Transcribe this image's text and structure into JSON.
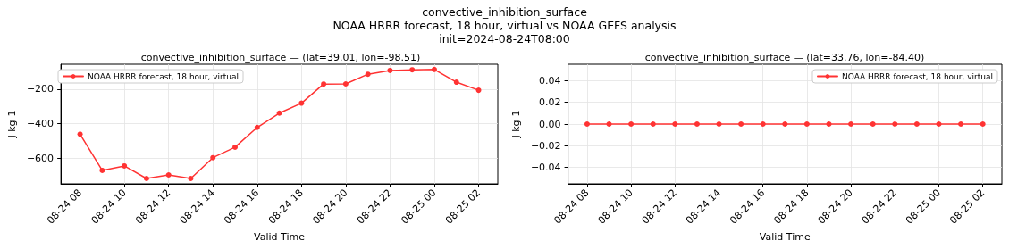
{
  "chart_data": [
    {
      "type": "line",
      "title": "convective_inhibition_surface — (lat=39.01, lon=-98.51)",
      "annotations": [
        "convective_inhibition_surface",
        "NOAA HRRR forecast, 18 hour, virtual vs NOAA GEFS analysis",
        "init=2024-08-24T08:00"
      ],
      "xlabel": "Valid Time",
      "ylabel": "J kg-1",
      "x": [
        "2024-08-24T08:00",
        "2024-08-24T09:00",
        "2024-08-24T10:00",
        "2024-08-24T11:00",
        "2024-08-24T12:00",
        "2024-08-24T13:00",
        "2024-08-24T14:00",
        "2024-08-24T15:00",
        "2024-08-24T16:00",
        "2024-08-24T17:00",
        "2024-08-24T18:00",
        "2024-08-24T19:00",
        "2024-08-24T20:00",
        "2024-08-24T21:00",
        "2024-08-24T22:00",
        "2024-08-24T23:00",
        "2024-08-25T00:00",
        "2024-08-25T01:00",
        "2024-08-25T02:00"
      ],
      "series": [
        {
          "name": "NOAA HRRR forecast, 18 hour, virtual",
          "color": "#ff3333",
          "values": [
            -461,
            -672,
            -646,
            -719,
            -698,
            -719,
            -598,
            -537,
            -422,
            -339,
            -281,
            -170,
            -169,
            -113,
            -91,
            -87,
            -85,
            -159,
            -206
          ]
        }
      ],
      "xlim": [
        "2024-08-24T07:08",
        "2024-08-25T02:52"
      ],
      "xticks": [
        {
          "value": "2024-08-24T08:00",
          "label": "08-24 08"
        },
        {
          "value": "2024-08-24T10:00",
          "label": "08-24 10"
        },
        {
          "value": "2024-08-24T12:00",
          "label": "08-24 12"
        },
        {
          "value": "2024-08-24T14:00",
          "label": "08-24 14"
        },
        {
          "value": "2024-08-24T16:00",
          "label": "08-24 16"
        },
        {
          "value": "2024-08-24T18:00",
          "label": "08-24 18"
        },
        {
          "value": "2024-08-24T20:00",
          "label": "08-24 20"
        },
        {
          "value": "2024-08-24T22:00",
          "label": "08-24 22"
        },
        {
          "value": "2024-08-25T00:00",
          "label": "08-25 00"
        },
        {
          "value": "2024-08-25T02:00",
          "label": "08-25 02"
        }
      ],
      "ylim": [
        -750,
        -55
      ],
      "yticks": [
        {
          "value": -600,
          "label": "−600"
        },
        {
          "value": -400,
          "label": "−400"
        },
        {
          "value": -200,
          "label": "−200"
        }
      ],
      "grid": true,
      "legend": "top left",
      "marker": "circle",
      "line_style": "solid"
    },
    {
      "type": "line",
      "title": "convective_inhibition_surface — (lat=33.76, lon=-84.40)",
      "xlabel": "Valid Time",
      "ylabel": "J kg-1",
      "x": [
        "2024-08-24T08:00",
        "2024-08-24T09:00",
        "2024-08-24T10:00",
        "2024-08-24T11:00",
        "2024-08-24T12:00",
        "2024-08-24T13:00",
        "2024-08-24T14:00",
        "2024-08-24T15:00",
        "2024-08-24T16:00",
        "2024-08-24T17:00",
        "2024-08-24T18:00",
        "2024-08-24T19:00",
        "2024-08-24T20:00",
        "2024-08-24T21:00",
        "2024-08-24T22:00",
        "2024-08-24T23:00",
        "2024-08-25T00:00",
        "2024-08-25T01:00",
        "2024-08-25T02:00"
      ],
      "series": [
        {
          "name": "NOAA HRRR forecast, 18 hour, virtual",
          "color": "#ff3333",
          "values": [
            0,
            0,
            0,
            0,
            0,
            0,
            0,
            0,
            0,
            0,
            0,
            0,
            0,
            0,
            0,
            0,
            0,
            0,
            0
          ]
        }
      ],
      "xlim": [
        "2024-08-24T07:08",
        "2024-08-25T02:52"
      ],
      "xticks": [
        {
          "value": "2024-08-24T08:00",
          "label": "08-24 08"
        },
        {
          "value": "2024-08-24T10:00",
          "label": "08-24 10"
        },
        {
          "value": "2024-08-24T12:00",
          "label": "08-24 12"
        },
        {
          "value": "2024-08-24T14:00",
          "label": "08-24 14"
        },
        {
          "value": "2024-08-24T16:00",
          "label": "08-24 16"
        },
        {
          "value": "2024-08-24T18:00",
          "label": "08-24 18"
        },
        {
          "value": "2024-08-24T20:00",
          "label": "08-24 20"
        },
        {
          "value": "2024-08-24T22:00",
          "label": "08-24 22"
        },
        {
          "value": "2024-08-25T00:00",
          "label": "08-25 00"
        },
        {
          "value": "2024-08-25T02:00",
          "label": "08-25 02"
        }
      ],
      "ylim": [
        -0.055,
        0.055
      ],
      "yticks": [
        {
          "value": -0.04,
          "label": "−0.04"
        },
        {
          "value": -0.02,
          "label": "−0.02"
        },
        {
          "value": 0,
          "label": "0.00"
        },
        {
          "value": 0.02,
          "label": "0.02"
        },
        {
          "value": 0.04,
          "label": "0.04"
        }
      ],
      "grid": true,
      "legend": "top right",
      "marker": "circle",
      "line_style": "solid"
    }
  ]
}
